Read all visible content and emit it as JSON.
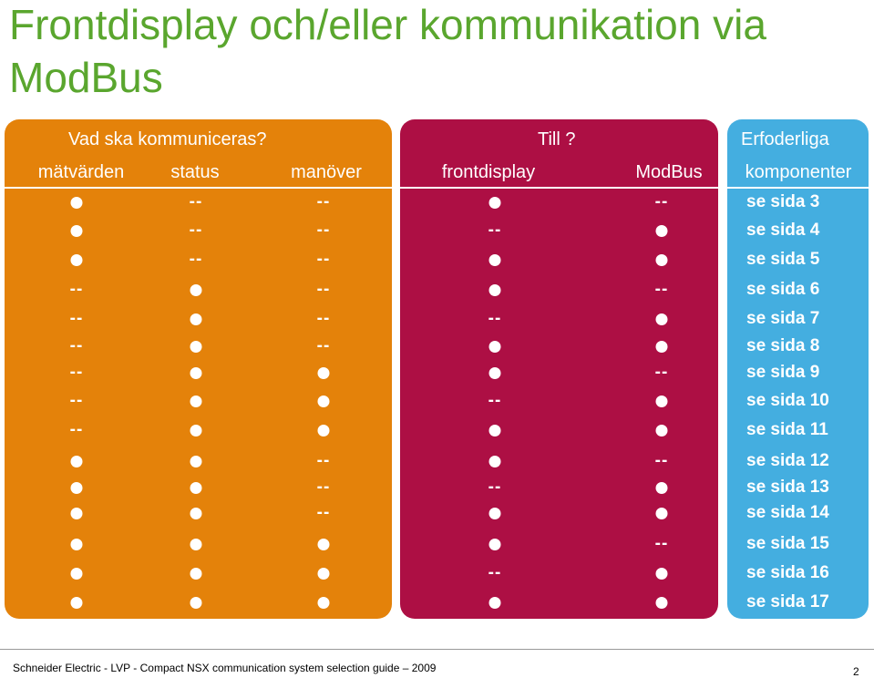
{
  "title": "Frontdisplay och/eller  kommunikation via ModBus",
  "headers": {
    "what_question": "Vad ska kommuniceras?",
    "to_question": "Till ?",
    "required": "Erfoderliga",
    "col_matvarden": "mätvärden",
    "col_status": "status",
    "col_manover": "manöver",
    "col_frontdisplay": "frontdisplay",
    "col_modbus": "ModBus",
    "col_komponenter": "komponenter"
  },
  "symbols": {
    "dot": "●",
    "dash": "--"
  },
  "rows": [
    {
      "matvarden": "dot",
      "status": "dash",
      "manover": "dash",
      "frontdisplay": "dot",
      "modbus": "dash",
      "page": "se sida 3"
    },
    {
      "matvarden": "dot",
      "status": "dash",
      "manover": "dash",
      "frontdisplay": "dash",
      "modbus": "dot",
      "page": "se sida 4"
    },
    {
      "matvarden": "dot",
      "status": "dash",
      "manover": "dash",
      "frontdisplay": "dot",
      "modbus": "dot",
      "page": "se sida 5"
    },
    {
      "matvarden": "dash",
      "status": "dot",
      "manover": "dash",
      "frontdisplay": "dot",
      "modbus": "dash",
      "page": "se sida 6"
    },
    {
      "matvarden": "dash",
      "status": "dot",
      "manover": "dash",
      "frontdisplay": "dash",
      "modbus": "dot",
      "page": "se sida 7"
    },
    {
      "matvarden": "dash",
      "status": "dot",
      "manover": "dash",
      "frontdisplay": "dot",
      "modbus": "dot",
      "page": "se sida 8"
    },
    {
      "matvarden": "dash",
      "status": "dot",
      "manover": "dot",
      "frontdisplay": "dot",
      "modbus": "dash",
      "page": "se sida 9"
    },
    {
      "matvarden": "dash",
      "status": "dot",
      "manover": "dot",
      "frontdisplay": "dash",
      "modbus": "dot",
      "page": "se sida 10"
    },
    {
      "matvarden": "dash",
      "status": "dot",
      "manover": "dot",
      "frontdisplay": "dot",
      "modbus": "dot",
      "page": "se sida 11"
    },
    {
      "matvarden": "dot",
      "status": "dot",
      "manover": "dash",
      "frontdisplay": "dot",
      "modbus": "dash",
      "page": "se sida 12"
    },
    {
      "matvarden": "dot",
      "status": "dot",
      "manover": "dash",
      "frontdisplay": "dash",
      "modbus": "dot",
      "page": "se sida 13"
    },
    {
      "matvarden": "dot",
      "status": "dot",
      "manover": "dash",
      "frontdisplay": "dot",
      "modbus": "dot",
      "page": "se sida 14"
    },
    {
      "matvarden": "dot",
      "status": "dot",
      "manover": "dot",
      "frontdisplay": "dot",
      "modbus": "dash",
      "page": "se sida 15"
    },
    {
      "matvarden": "dot",
      "status": "dot",
      "manover": "dot",
      "frontdisplay": "dash",
      "modbus": "dot",
      "page": "se sida 16"
    },
    {
      "matvarden": "dot",
      "status": "dot",
      "manover": "dot",
      "frontdisplay": "dot",
      "modbus": "dot",
      "page": "se sida 17"
    }
  ],
  "footer": "Schneider Electric - LVP - Compact NSX communication system selection guide – 2009",
  "page_number": "2"
}
